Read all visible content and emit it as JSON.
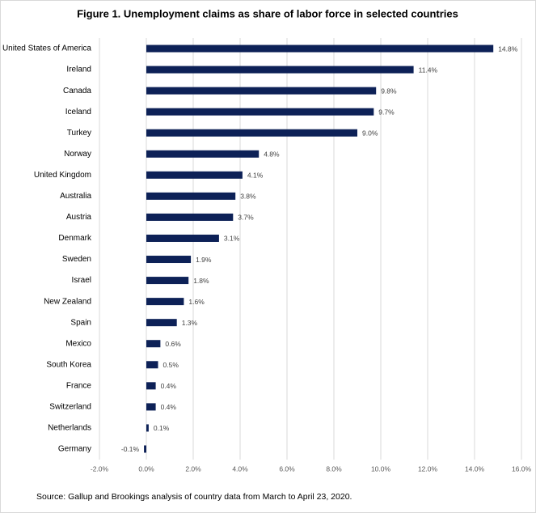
{
  "chart_data": {
    "type": "bar",
    "orientation": "horizontal",
    "title": "Figure 1. Unemployment claims as share of labor force in selected countries",
    "source": "Source:  Gallup and Brookings analysis of country data from March to April 23, 2020.",
    "categories": [
      "United States of America",
      "Ireland",
      "Canada",
      "Iceland",
      "Turkey",
      "Norway",
      "United Kingdom",
      "Australia",
      "Austria",
      "Denmark",
      "Sweden",
      "Israel",
      "New Zealand",
      "Spain",
      "Mexico",
      "South Korea",
      "France",
      "Switzerland",
      "Netherlands",
      "Germany"
    ],
    "values": [
      14.8,
      11.4,
      9.8,
      9.7,
      9.0,
      4.8,
      4.1,
      3.8,
      3.7,
      3.1,
      1.9,
      1.8,
      1.6,
      1.3,
      0.6,
      0.5,
      0.4,
      0.4,
      0.1,
      -0.1
    ],
    "value_labels": [
      "14.8%",
      "11.4%",
      "9.8%",
      "9.7%",
      "9.0%",
      "4.8%",
      "4.1%",
      "3.8%",
      "3.7%",
      "3.1%",
      "1.9%",
      "1.8%",
      "1.6%",
      "1.3%",
      "0.6%",
      "0.5%",
      "0.4%",
      "0.4%",
      "0.1%",
      "-0.1%"
    ],
    "color": "#0d2157",
    "xlim": [
      -2,
      16
    ],
    "xticks": [
      {
        "value": -2,
        "label": "-2.0%"
      },
      {
        "value": 0,
        "label": "0.0%"
      },
      {
        "value": 2,
        "label": "2.0%"
      },
      {
        "value": 4,
        "label": "4.0%"
      },
      {
        "value": 6,
        "label": "6.0%"
      },
      {
        "value": 8,
        "label": "8.0%"
      },
      {
        "value": 10,
        "label": "10.0%"
      },
      {
        "value": 12,
        "label": "12.0%"
      },
      {
        "value": 14,
        "label": "14.0%"
      },
      {
        "value": 16,
        "label": "16.0%"
      }
    ],
    "grid": true
  }
}
